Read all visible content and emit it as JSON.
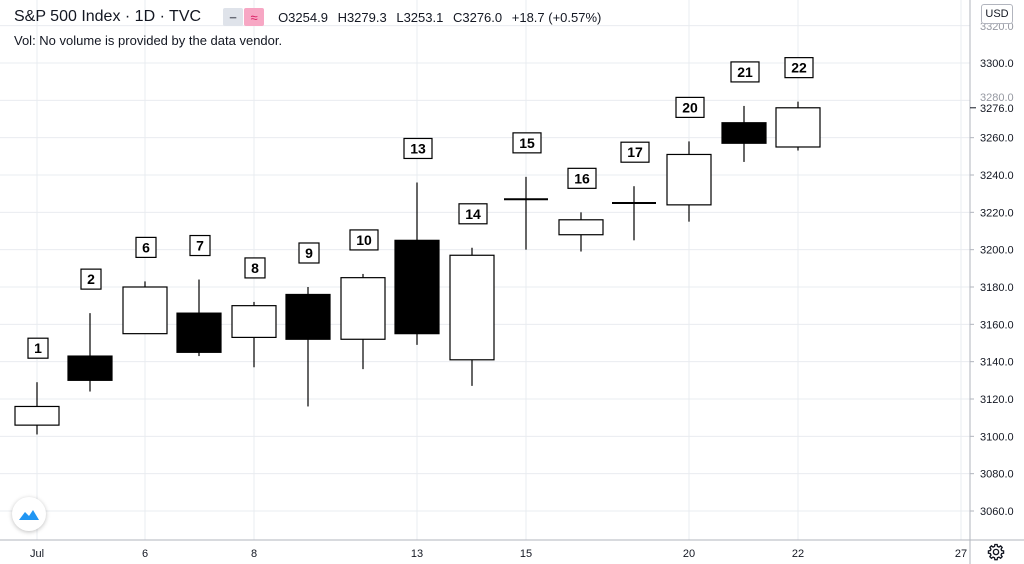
{
  "header": {
    "title": "S&P 500 Index · 1D · TVC",
    "open_label": "O3254.9",
    "high_label": "H3279.3",
    "low_label": "L3253.1",
    "close_label": "C3276.0",
    "change_label": "+18.7 (+0.57%)",
    "volume_note": "Vol: No volume is provided by the data vendor."
  },
  "price_scale": {
    "currency_label": "USD",
    "last_price_label": "3276.0",
    "partial_top_label": "3320.0",
    "partial_mid_label": "3280.0"
  },
  "icons": {
    "minus": "minus-icon",
    "wave": "wave-icon",
    "logo": "tradingview-logo-icon",
    "settings": "gear-icon"
  },
  "colors": {
    "up_body": "#ffffff",
    "down_body": "#000000",
    "grid": "#e9ecf0",
    "text": "#131722",
    "wave_bg": "#f7a7c4",
    "logo": "#2196f3"
  },
  "chart_data": {
    "type": "candlestick",
    "grid": true,
    "ylim": [
      3050,
      3320
    ],
    "yticks": [
      3060.0,
      3080.0,
      3100.0,
      3120.0,
      3140.0,
      3160.0,
      3180.0,
      3200.0,
      3220.0,
      3240.0,
      3260.0,
      3280.0,
      3300.0,
      3320.0
    ],
    "xtick_labels": [
      "Jul",
      "6",
      "8",
      "13",
      "15",
      "20",
      "22",
      "27"
    ],
    "candles": [
      {
        "label": "1",
        "open": 3106,
        "high": 3129,
        "low": 3101,
        "close": 3116
      },
      {
        "label": "2",
        "open": 3143,
        "high": 3166,
        "low": 3124,
        "close": 3130
      },
      {
        "label": "6",
        "open": 3155,
        "high": 3183,
        "low": 3155,
        "close": 3180
      },
      {
        "label": "7",
        "open": 3166,
        "high": 3184,
        "low": 3143,
        "close": 3145
      },
      {
        "label": "8",
        "open": 3153,
        "high": 3172,
        "low": 3137,
        "close": 3170
      },
      {
        "label": "9",
        "open": 3176,
        "high": 3180,
        "low": 3116,
        "close": 3152
      },
      {
        "label": "10",
        "open": 3152,
        "high": 3187,
        "low": 3136,
        "close": 3185
      },
      {
        "label": "13",
        "open": 3205,
        "high": 3236,
        "low": 3149,
        "close": 3155
      },
      {
        "label": "14",
        "open": 3141,
        "high": 3201,
        "low": 3127,
        "close": 3197
      },
      {
        "label": "15",
        "open": 3226,
        "high": 3239,
        "low": 3200,
        "close": 3227
      },
      {
        "label": "16",
        "open": 3208,
        "high": 3220,
        "low": 3199,
        "close": 3216
      },
      {
        "label": "17",
        "open": 3224,
        "high": 3234,
        "low": 3205,
        "close": 3225
      },
      {
        "label": "20",
        "open": 3224,
        "high": 3258,
        "low": 3215,
        "close": 3251
      },
      {
        "label": "21",
        "open": 3268,
        "high": 3277,
        "low": 3247,
        "close": 3257
      },
      {
        "label": "22",
        "open": 3255,
        "high": 3279.3,
        "low": 3253.1,
        "close": 3276.0
      }
    ]
  }
}
